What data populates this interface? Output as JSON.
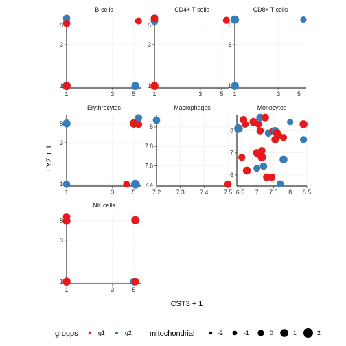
{
  "chart_data": {
    "type": "scatter",
    "xlabel": "CST3 + 1",
    "ylabel": "LYZ + 1",
    "log_axes": true,
    "grid": true,
    "colors": {
      "g1": "#E41A1C",
      "g2": "#377EB8"
    },
    "legend": {
      "position": "bottom",
      "groups_title": "groups",
      "groups": [
        "g1",
        "g2"
      ],
      "size_title": "mitochondrial",
      "size_levels": [
        "-2",
        "-1",
        "0",
        "1",
        "2"
      ]
    },
    "facets": [
      {
        "name": "B-cells",
        "xlim": [
          1,
          6
        ],
        "ylim": [
          0.95,
          6.2
        ],
        "xticks": [
          1,
          3,
          5
        ],
        "yticks": [
          1,
          3,
          5
        ],
        "points": [
          {
            "x": 1.0,
            "y": 6.0,
            "group": "g2",
            "size": 0.6
          },
          {
            "x": 1.0,
            "y": 5.25,
            "group": "g1",
            "size": 0.7
          },
          {
            "x": 5.6,
            "y": 5.6,
            "group": "g1",
            "size": 0.4
          },
          {
            "x": 1.0,
            "y": 1.0,
            "group": "g2",
            "size": 1.2
          },
          {
            "x": 1.0,
            "y": 1.0,
            "group": "g1",
            "size": 0.9
          },
          {
            "x": 5.2,
            "y": 1.0,
            "group": "g2",
            "size": 1.0
          }
        ]
      },
      {
        "name": "CD4+ T-cells",
        "xlim": [
          1,
          6
        ],
        "ylim": [
          0.95,
          6.2
        ],
        "xticks": [
          1,
          3,
          5
        ],
        "yticks": [
          1,
          3,
          5
        ],
        "points": [
          {
            "x": 1.0,
            "y": 5.6,
            "group": "g2",
            "size": 0.8
          },
          {
            "x": 1.0,
            "y": 6.0,
            "group": "g1",
            "size": 0.7
          },
          {
            "x": 5.6,
            "y": 5.7,
            "group": "g1",
            "size": 0.4
          },
          {
            "x": 1.0,
            "y": 1.0,
            "group": "g1",
            "size": 1.0
          }
        ]
      },
      {
        "name": "CD8+ T-cells",
        "xlim": [
          1,
          6
        ],
        "ylim": [
          0.95,
          6.2
        ],
        "xticks": [
          1,
          3,
          5
        ],
        "yticks": [
          1,
          3,
          5
        ],
        "points": [
          {
            "x": 1.0,
            "y": 5.8,
            "group": "g2",
            "size": 1.2
          },
          {
            "x": 5.6,
            "y": 5.8,
            "group": "g2",
            "size": 0.0
          },
          {
            "x": 1.0,
            "y": 1.0,
            "group": "g2",
            "size": 1.0
          }
        ]
      },
      {
        "name": "Erythrocytes",
        "xlim": [
          1,
          6
        ],
        "ylim": [
          0.95,
          6.2
        ],
        "xticks": [
          1,
          3,
          5
        ],
        "yticks": [
          1,
          3,
          5
        ],
        "points": [
          {
            "x": 1.0,
            "y": 5.0,
            "group": "g2",
            "size": 1.0
          },
          {
            "x": 5.0,
            "y": 5.0,
            "group": "g1",
            "size": 1.2
          },
          {
            "x": 5.6,
            "y": 4.9,
            "group": "g1",
            "size": 0.6
          },
          {
            "x": 5.6,
            "y": 5.8,
            "group": "g2",
            "size": 0.6
          },
          {
            "x": 1.0,
            "y": 1.0,
            "group": "g2",
            "size": 0.6
          },
          {
            "x": 4.2,
            "y": 1.0,
            "group": "g1",
            "size": 0.3
          },
          {
            "x": 5.2,
            "y": 1.0,
            "group": "g2",
            "size": 1.5
          }
        ]
      },
      {
        "name": "Macrophages",
        "xlim": [
          7.2,
          7.5
        ],
        "ylim": [
          7.39,
          8.12
        ],
        "xticks": [
          7.2,
          7.3,
          7.4,
          7.5
        ],
        "yticks": [
          7.4,
          7.6,
          7.8,
          8.0
        ],
        "points": [
          {
            "x": 7.2,
            "y": 8.07,
            "group": "g2",
            "size": 0.6
          },
          {
            "x": 7.5,
            "y": 7.41,
            "group": "g1",
            "size": 0.6
          }
        ]
      },
      {
        "name": "Monocytes",
        "xlim": [
          6.4,
          8.5
        ],
        "ylim": [
          5.5,
          8.7
        ],
        "xticks": [
          6.5,
          7.0,
          7.5,
          8.0,
          8.5
        ],
        "yticks": [
          6,
          7,
          8
        ],
        "points": [
          {
            "x": 6.45,
            "y": 8.1,
            "group": "g2",
            "size": 1.4
          },
          {
            "x": 6.55,
            "y": 6.8,
            "group": "g1",
            "size": 0.5
          },
          {
            "x": 6.6,
            "y": 8.5,
            "group": "g1",
            "size": 0.7
          },
          {
            "x": 6.65,
            "y": 8.3,
            "group": "g1",
            "size": 0.5
          },
          {
            "x": 6.7,
            "y": 6.2,
            "group": "g1",
            "size": 1.0
          },
          {
            "x": 6.9,
            "y": 8.4,
            "group": "g1",
            "size": 1.0
          },
          {
            "x": 7.0,
            "y": 7.0,
            "group": "g1",
            "size": 0.8
          },
          {
            "x": 7.0,
            "y": 6.3,
            "group": "g2",
            "size": 0.3
          },
          {
            "x": 7.05,
            "y": 8.3,
            "group": "g1",
            "size": 0.4
          },
          {
            "x": 7.1,
            "y": 8.0,
            "group": "g1",
            "size": 0.6
          },
          {
            "x": 7.1,
            "y": 8.6,
            "group": "g2",
            "size": 0.8
          },
          {
            "x": 7.15,
            "y": 7.1,
            "group": "g1",
            "size": 0.6
          },
          {
            "x": 7.15,
            "y": 6.8,
            "group": "g1",
            "size": 1.2
          },
          {
            "x": 7.2,
            "y": 6.4,
            "group": "g2",
            "size": 0.6
          },
          {
            "x": 7.25,
            "y": 8.6,
            "group": "g1",
            "size": 0.8
          },
          {
            "x": 7.3,
            "y": 5.9,
            "group": "g1",
            "size": 0.8
          },
          {
            "x": 7.35,
            "y": 7.9,
            "group": "g2",
            "size": 0.6
          },
          {
            "x": 7.45,
            "y": 5.9,
            "group": "g1",
            "size": 0.6
          },
          {
            "x": 7.5,
            "y": 8.0,
            "group": "g1",
            "size": 0.5
          },
          {
            "x": 7.55,
            "y": 7.6,
            "group": "g1",
            "size": 0.8
          },
          {
            "x": 7.55,
            "y": 8.0,
            "group": "g2",
            "size": 0.8
          },
          {
            "x": 7.6,
            "y": 7.9,
            "group": "g1",
            "size": 1.0
          },
          {
            "x": 7.65,
            "y": 7.8,
            "group": "g1",
            "size": 0.6
          },
          {
            "x": 7.7,
            "y": 5.6,
            "group": "g2",
            "size": 0.5
          },
          {
            "x": 7.8,
            "y": 6.7,
            "group": "g2",
            "size": 1.0
          },
          {
            "x": 7.8,
            "y": 7.7,
            "group": "g1",
            "size": 0.4
          },
          {
            "x": 8.0,
            "y": 8.4,
            "group": "g2",
            "size": 0.0
          },
          {
            "x": 8.4,
            "y": 8.3,
            "group": "g1",
            "size": 1.0
          },
          {
            "x": 8.4,
            "y": 7.6,
            "group": "g2",
            "size": 0.5
          }
        ]
      },
      {
        "name": "NK cells",
        "xlim": [
          1,
          6
        ],
        "ylim": [
          0.95,
          6.2
        ],
        "xticks": [
          1,
          3,
          5
        ],
        "yticks": [
          1,
          3,
          5
        ],
        "points": [
          {
            "x": 1.0,
            "y": 5.6,
            "group": "g1",
            "size": 0.6
          },
          {
            "x": 1.0,
            "y": 5.0,
            "group": "g1",
            "size": 1.0
          },
          {
            "x": 5.2,
            "y": 5.1,
            "group": "g1",
            "size": 1.2
          },
          {
            "x": 1.0,
            "y": 1.0,
            "group": "g1",
            "size": 1.0
          },
          {
            "x": 5.0,
            "y": 1.0,
            "group": "g2",
            "size": 0.6
          },
          {
            "x": 5.2,
            "y": 1.0,
            "group": "g1",
            "size": 0.6
          }
        ]
      }
    ]
  }
}
